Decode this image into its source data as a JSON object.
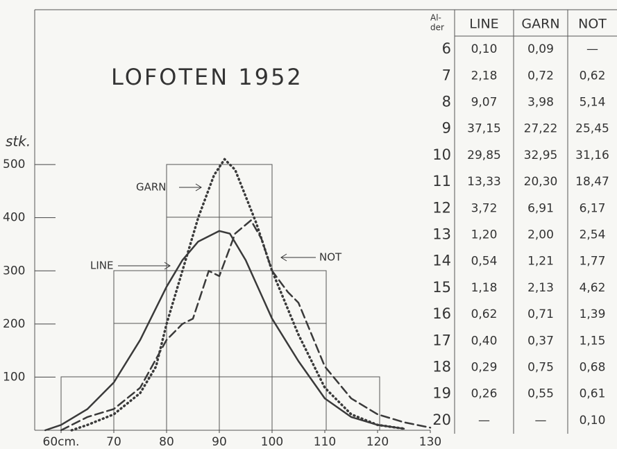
{
  "chart_data": {
    "type": "line",
    "title": "LOFOTEN 1952",
    "y_label": "stk.",
    "xlim": [
      55,
      130
    ],
    "ylim": [
      0,
      790
    ],
    "xticks": [
      {
        "value": 60,
        "label": "60cm."
      },
      70,
      80,
      90,
      100,
      110,
      120,
      130
    ],
    "yticks": [
      100,
      200,
      300,
      400,
      500
    ],
    "series": [
      {
        "name": "LINE",
        "color": "#3a3a3a",
        "dash": "solid",
        "x": [
          57,
          60,
          65,
          70,
          75,
          80,
          83,
          86,
          90,
          92,
          95,
          100,
          105,
          110,
          115,
          120,
          125
        ],
        "values": [
          0,
          10,
          40,
          90,
          170,
          270,
          320,
          355,
          375,
          370,
          320,
          210,
          130,
          60,
          25,
          10,
          3
        ]
      },
      {
        "name": "GARN",
        "color": "#3a3a3a",
        "dash": "dotted",
        "x": [
          62,
          65,
          70,
          75,
          78,
          80,
          83,
          86,
          89,
          91,
          93,
          95,
          97,
          100,
          105,
          110,
          115,
          120,
          125
        ],
        "values": [
          0,
          10,
          30,
          70,
          120,
          200,
          300,
          400,
          480,
          510,
          490,
          440,
          390,
          300,
          180,
          80,
          30,
          10,
          3
        ]
      },
      {
        "name": "NOT",
        "color": "#3a3a3a",
        "dash": "dashed",
        "x": [
          60,
          65,
          70,
          75,
          80,
          83,
          85,
          88,
          90,
          93,
          96,
          98,
          100,
          103,
          105,
          110,
          115,
          120,
          125,
          130
        ],
        "values": [
          0,
          25,
          40,
          80,
          170,
          200,
          210,
          300,
          290,
          370,
          395,
          360,
          300,
          260,
          240,
          120,
          60,
          30,
          15,
          5
        ]
      }
    ]
  },
  "table": {
    "corner": [
      "Al-",
      "der"
    ],
    "columns": [
      "LINE",
      "GARN",
      "NOT"
    ],
    "rows": [
      [
        "6",
        "0,10",
        "0,09",
        "—"
      ],
      [
        "7",
        "2,18",
        "0,72",
        "0,62"
      ],
      [
        "8",
        "9,07",
        "3,98",
        "5,14"
      ],
      [
        "9",
        "37,15",
        "27,22",
        "25,45"
      ],
      [
        "10",
        "29,85",
        "32,95",
        "31,16"
      ],
      [
        "11",
        "13,33",
        "20,30",
        "18,47"
      ],
      [
        "12",
        "3,72",
        "6,91",
        "6,17"
      ],
      [
        "13",
        "1,20",
        "2,00",
        "2,54"
      ],
      [
        "14",
        "0,54",
        "1,21",
        "1,77"
      ],
      [
        "15",
        "1,18",
        "2,13",
        "4,62"
      ],
      [
        "16",
        "0,62",
        "0,71",
        "1,39"
      ],
      [
        "17",
        "0,40",
        "0,37",
        "1,15"
      ],
      [
        "18",
        "0,29",
        "0,75",
        "0,68"
      ],
      [
        "19",
        "0,26",
        "0,55",
        "0,61"
      ],
      [
        "20",
        "—",
        "—",
        "0,10"
      ]
    ]
  }
}
